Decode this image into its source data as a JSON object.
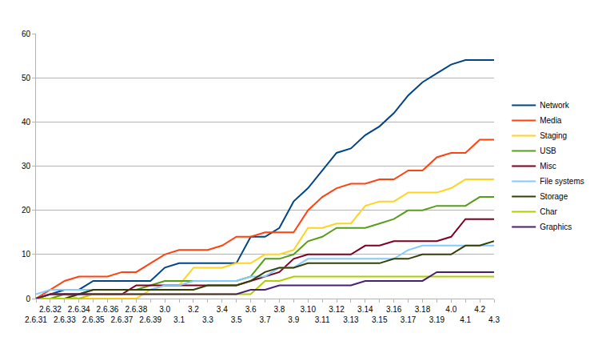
{
  "chart_data": {
    "type": "line",
    "categories": [
      "2.6.31",
      "2.6.32",
      "2.6.33",
      "2.6.34",
      "2.6.35",
      "2.6.36",
      "2.6.37",
      "2.6.38",
      "2.6.39",
      "3.0",
      "3.1",
      "3.2",
      "3.3",
      "3.4",
      "3.5",
      "3.6",
      "3.7",
      "3.8",
      "3.9",
      "3.10",
      "3.11",
      "3.12",
      "3.13",
      "3.14",
      "3.15",
      "3.16",
      "3.17",
      "3.18",
      "3.19",
      "4.0",
      "4.1",
      "4.2",
      "4.3"
    ],
    "series": [
      {
        "name": "Network",
        "color": "#004586",
        "values": [
          0,
          1,
          2,
          2,
          4,
          4,
          4,
          4,
          4,
          7,
          8,
          8,
          8,
          8,
          8,
          14,
          14,
          16,
          22,
          25,
          29,
          33,
          34,
          37,
          39,
          42,
          46,
          49,
          51,
          53,
          54,
          54,
          54
        ]
      },
      {
        "name": "Media",
        "color": "#ff420e",
        "values": [
          0,
          2,
          4,
          5,
          5,
          5,
          6,
          6,
          8,
          10,
          11,
          11,
          11,
          12,
          14,
          14,
          15,
          15,
          15,
          20,
          23,
          25,
          26,
          26,
          27,
          27,
          29,
          29,
          32,
          33,
          33,
          36,
          36
        ]
      },
      {
        "name": "Staging",
        "color": "#ffd320",
        "values": [
          0,
          1,
          1,
          0,
          0,
          0,
          0,
          0,
          2,
          3,
          3,
          7,
          7,
          7,
          8,
          8,
          10,
          10,
          11,
          16,
          16,
          17,
          17,
          21,
          22,
          22,
          24,
          24,
          24,
          25,
          27,
          27,
          27
        ]
      },
      {
        "name": "USB",
        "color": "#579d1c",
        "values": [
          0,
          0,
          1,
          1,
          2,
          2,
          2,
          2,
          3,
          4,
          4,
          4,
          4,
          4,
          4,
          5,
          9,
          9,
          10,
          13,
          14,
          16,
          16,
          16,
          17,
          18,
          20,
          20,
          21,
          21,
          21,
          23,
          23
        ]
      },
      {
        "name": "Misc",
        "color": "#7e0021",
        "values": [
          0,
          1,
          1,
          1,
          1,
          1,
          1,
          3,
          3,
          3,
          3,
          3,
          3,
          3,
          3,
          4,
          5,
          6,
          9,
          10,
          10,
          10,
          10,
          12,
          12,
          13,
          13,
          13,
          13,
          14,
          18,
          18,
          18
        ]
      },
      {
        "name": "File systems",
        "color": "#83caff",
        "values": [
          1,
          2,
          2,
          2,
          2,
          2,
          2,
          2,
          2,
          3,
          3,
          4,
          4,
          4,
          4,
          5,
          5,
          7,
          7,
          9,
          9,
          9,
          9,
          9,
          9,
          9,
          11,
          12,
          12,
          12,
          12,
          12,
          12
        ]
      },
      {
        "name": "Storage",
        "color": "#314004",
        "values": [
          0,
          0,
          0,
          1,
          2,
          2,
          2,
          2,
          2,
          2,
          2,
          2,
          3,
          3,
          3,
          4,
          6,
          7,
          7,
          8,
          8,
          8,
          8,
          8,
          8,
          9,
          9,
          10,
          10,
          10,
          12,
          12,
          13
        ]
      },
      {
        "name": "Char",
        "color": "#aecf00",
        "values": [
          0,
          0,
          0,
          0,
          1,
          1,
          1,
          1,
          1,
          1,
          1,
          1,
          1,
          1,
          1,
          1,
          4,
          4,
          5,
          5,
          5,
          5,
          5,
          5,
          5,
          5,
          5,
          5,
          5,
          5,
          5,
          5,
          5
        ]
      },
      {
        "name": "Graphics",
        "color": "#4b1f6f",
        "values": [
          0,
          1,
          1,
          1,
          1,
          1,
          1,
          1,
          1,
          1,
          1,
          1,
          1,
          1,
          1,
          2,
          2,
          3,
          3,
          3,
          3,
          3,
          3,
          4,
          4,
          4,
          4,
          4,
          6,
          6,
          6,
          6,
          6
        ]
      }
    ],
    "ylim": [
      0,
      60
    ],
    "yticks": [
      0,
      10,
      20,
      30,
      40,
      50,
      60
    ],
    "grid": true,
    "legend": "right"
  }
}
